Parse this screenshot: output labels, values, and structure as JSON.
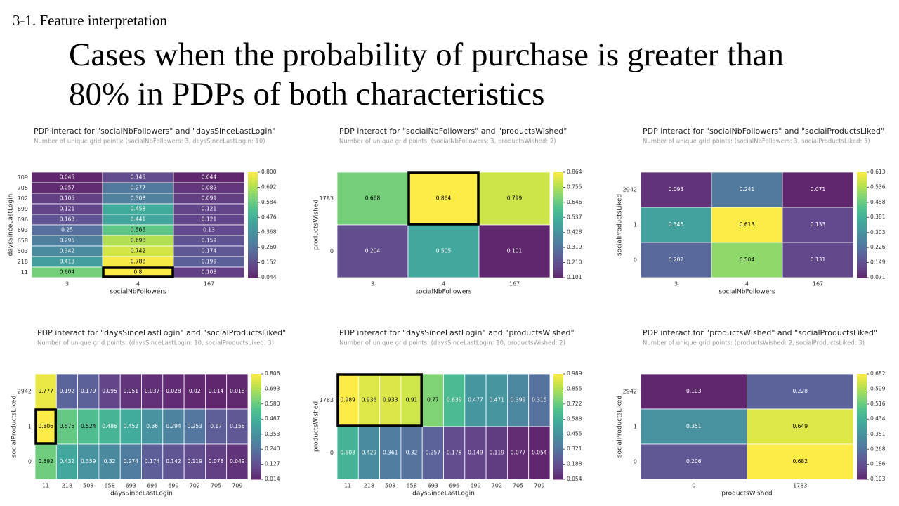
{
  "slide": {
    "section": "3-1. Feature interpretation",
    "title": "Cases when the probability of purchase is greater than 80% in PDPs of both characteristics"
  },
  "chart_data": [
    {
      "type": "heatmap",
      "title": "PDP interact for \"socialNbFollowers\" and \"daysSinceLastLogin\"",
      "subtitle": "Number of unique grid points: (socialNbFollowers: 3, daysSinceLastLogin: 10)",
      "x_label": "socialNbFollowers",
      "y_label": "daysSinceLastLogin",
      "colormap": "viridis",
      "x_categories": [
        3,
        4,
        167
      ],
      "y_categories": [
        709,
        705,
        702,
        699,
        696,
        693,
        658,
        503,
        218,
        11
      ],
      "values": [
        [
          0.045,
          0.145,
          0.044
        ],
        [
          0.057,
          0.277,
          0.082
        ],
        [
          0.105,
          0.308,
          0.099
        ],
        [
          0.121,
          0.458,
          0.121
        ],
        [
          0.163,
          0.441,
          0.121
        ],
        [
          0.25,
          0.565,
          0.13
        ],
        [
          0.295,
          0.698,
          0.159
        ],
        [
          0.342,
          0.742,
          0.174
        ],
        [
          0.413,
          0.788,
          0.199
        ],
        [
          0.604,
          0.8,
          0.108
        ]
      ],
      "clim": [
        0.044,
        0.8
      ],
      "cticks": [
        {
          "value": 0.8,
          "label": "0.800"
        },
        0.692,
        0.584,
        0.476,
        0.368,
        {
          "value": 0.26,
          "label": "0.260"
        },
        0.152,
        0.044
      ],
      "highlight": {
        "rows": [
          9,
          9
        ],
        "cols": [
          1,
          1
        ]
      }
    },
    {
      "type": "heatmap",
      "title": "PDP interact for \"socialNbFollowers\" and \"productsWished\"",
      "subtitle": "Number of unique grid points: (socialNbFollowers: 3, productsWished: 2)",
      "x_label": "socialNbFollowers",
      "y_label": "productsWished",
      "colormap": "viridis",
      "x_categories": [
        3,
        4,
        167
      ],
      "y_categories": [
        1783,
        0
      ],
      "values": [
        [
          0.668,
          0.864,
          0.799
        ],
        [
          0.204,
          0.505,
          0.101
        ]
      ],
      "clim": [
        0.101,
        0.864
      ],
      "cticks": [
        0.864,
        0.755,
        0.646,
        0.537,
        0.428,
        0.319,
        {
          "value": 0.21,
          "label": "0.210"
        },
        0.101
      ],
      "highlight": {
        "rows": [
          0,
          0
        ],
        "cols": [
          1,
          1
        ]
      }
    },
    {
      "type": "heatmap",
      "title": "PDP interact for \"socialNbFollowers\" and \"socialProductsLiked\"",
      "subtitle": "Number of unique grid points: (socialNbFollowers: 3, socialProductsLiked: 3)",
      "x_label": "socialNbFollowers",
      "y_label": "socialProductsLiked",
      "colormap": "viridis",
      "x_categories": [
        3,
        4,
        167
      ],
      "y_categories": [
        2942,
        1,
        0
      ],
      "values": [
        [
          0.093,
          0.241,
          0.071
        ],
        [
          0.345,
          0.613,
          0.133
        ],
        [
          0.202,
          0.504,
          0.131
        ]
      ],
      "clim": [
        0.071,
        0.613
      ],
      "cticks": [
        0.613,
        0.536,
        0.458,
        0.381,
        0.303,
        0.226,
        0.149,
        0.071
      ]
    },
    {
      "type": "heatmap",
      "title": "PDP interact for \"daysSinceLastLogin\" and \"socialProductsLiked\"",
      "subtitle": "Number of unique grid points: (daysSinceLastLogin: 10, socialProductsLiked: 3)",
      "x_label": "daysSinceLastLogin",
      "y_label": "socialProductsLiked",
      "colormap": "viridis",
      "x_categories": [
        11,
        218,
        503,
        658,
        693,
        696,
        699,
        702,
        705,
        709
      ],
      "y_categories": [
        2942,
        1,
        0
      ],
      "values": [
        [
          0.777,
          0.192,
          0.179,
          0.095,
          0.051,
          0.037,
          0.028,
          0.02,
          0.014,
          0.018
        ],
        [
          0.806,
          0.575,
          0.524,
          0.486,
          0.452,
          0.36,
          0.294,
          0.253,
          0.17,
          0.156
        ],
        [
          0.592,
          0.432,
          0.359,
          0.32,
          0.274,
          0.174,
          0.142,
          0.119,
          0.078,
          0.049
        ]
      ],
      "clim": [
        0.014,
        0.806
      ],
      "cticks": [
        0.806,
        0.693,
        {
          "value": 0.58,
          "label": "0.580"
        },
        0.467,
        0.353,
        {
          "value": 0.24,
          "label": "0.240"
        },
        0.127,
        0.014
      ],
      "highlight": {
        "rows": [
          1,
          1
        ],
        "cols": [
          0,
          0
        ]
      }
    },
    {
      "type": "heatmap",
      "title": "PDP interact for \"daysSinceLastLogin\" and \"productsWished\"",
      "subtitle": "Number of unique grid points: (daysSinceLastLogin: 10, productsWished: 2)",
      "x_label": "daysSinceLastLogin",
      "y_label": "productsWished",
      "colormap": "viridis",
      "x_categories": [
        11,
        218,
        503,
        658,
        693,
        696,
        699,
        702,
        705,
        709
      ],
      "y_categories": [
        1783,
        0
      ],
      "values": [
        [
          0.989,
          0.936,
          0.933,
          0.91,
          0.77,
          0.639,
          0.477,
          0.471,
          0.399,
          0.315
        ],
        [
          0.603,
          0.429,
          0.361,
          0.32,
          0.257,
          0.178,
          0.149,
          0.119,
          0.077,
          0.054
        ]
      ],
      "clim": [
        0.054,
        0.989
      ],
      "cticks": [
        0.989,
        0.855,
        0.722,
        0.588,
        0.455,
        0.321,
        0.188,
        0.054
      ],
      "highlight": {
        "rows": [
          0,
          0
        ],
        "cols": [
          0,
          3
        ]
      }
    },
    {
      "type": "heatmap",
      "title": "PDP interact for \"productsWished\" and \"socialProductsLiked\"",
      "subtitle": "Number of unique grid points: (productsWished: 2, socialProductsLiked: 3)",
      "x_label": "productsWished",
      "y_label": "socialProductsLiked",
      "colormap": "viridis",
      "x_categories": [
        0,
        1783
      ],
      "y_categories": [
        2942,
        1,
        0
      ],
      "values": [
        [
          0.103,
          0.228
        ],
        [
          0.351,
          0.649
        ],
        [
          0.206,
          0.682
        ]
      ],
      "clim": [
        0.103,
        0.682
      ],
      "cticks": [
        0.682,
        0.599,
        0.516,
        0.434,
        0.351,
        0.268,
        0.186,
        0.103
      ]
    }
  ]
}
